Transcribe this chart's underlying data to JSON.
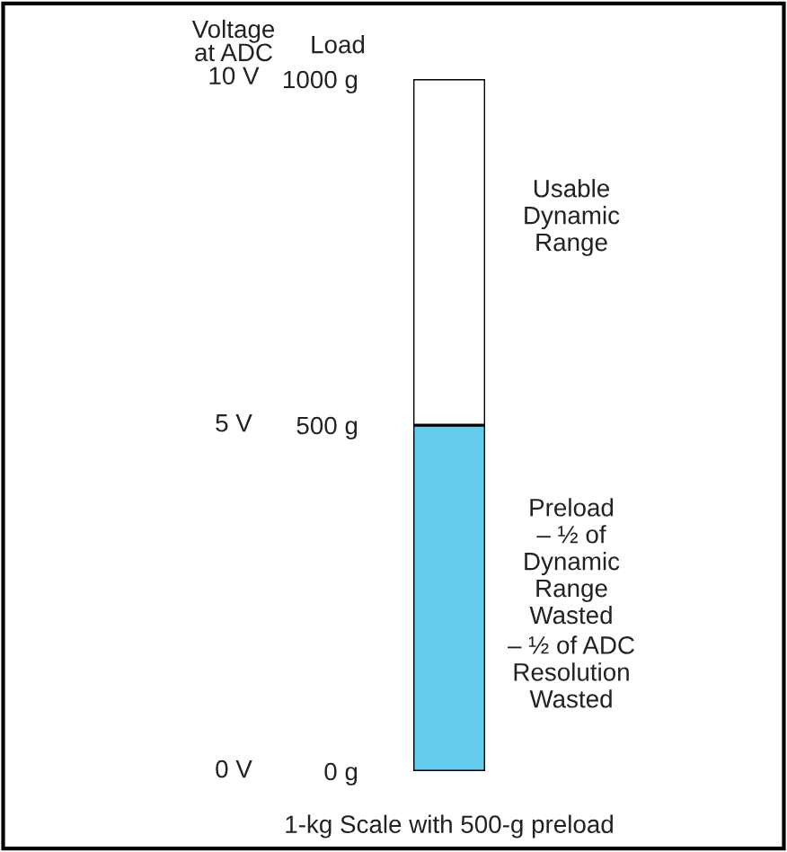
{
  "chart_data": {
    "type": "bar",
    "stacked": true,
    "categories": [
      null
    ],
    "series": [
      {
        "color": "#66ccee",
        "values": [
          500
        ]
      },
      {
        "color": "#ffffff",
        "values": [
          500
        ]
      }
    ],
    "ylim": [
      0,
      1000
    ],
    "yticks": [
      {
        "value": 0,
        "label": "0 g"
      },
      {
        "value": 500,
        "label": "500 g"
      },
      {
        "value": 1000,
        "label": "1000 g"
      }
    ],
    "ylabel": "Load",
    "xlabel": "1-kg Scale with 500-g preload",
    "annotations": [
      "Usable\nDynamic\nRange",
      "Preload\n– ½ of\nDynamic\nRange\nWasted",
      "– ½ of ADC\nResolution\nWasted",
      "Voltage\nat ADC\n10 V",
      "5 V",
      "0 V"
    ],
    "grid": false,
    "legend": false
  }
}
